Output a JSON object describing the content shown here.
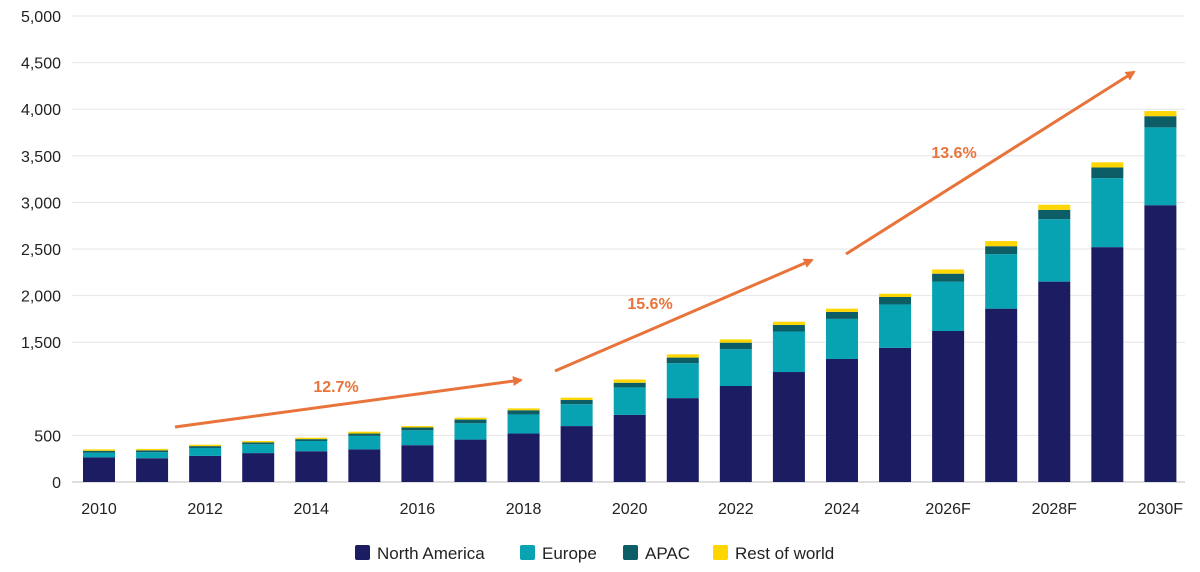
{
  "chart_data": {
    "type": "bar",
    "stacked": true,
    "title": "",
    "xlabel": "",
    "ylabel": "",
    "ylim": [
      0,
      5000
    ],
    "yticks": [
      0,
      500,
      1500,
      2000,
      2500,
      3000,
      3500,
      4000,
      4500,
      5000
    ],
    "ytick_labels": [
      "0",
      "500",
      "1,500",
      "2,000",
      "2,500",
      "3,000",
      "3,500",
      "4,000",
      "4,500",
      "5,000"
    ],
    "categories": [
      "2010",
      "2011",
      "2012",
      "2013",
      "2014",
      "2015",
      "2016",
      "2017",
      "2018",
      "2019",
      "2020",
      "2021",
      "2022",
      "2023",
      "2024",
      "2025",
      "2026F",
      "2027F",
      "2028F",
      "2029F",
      "2030F"
    ],
    "xtick_labels": [
      "2010",
      "",
      "2012",
      "",
      "2014",
      "",
      "2016",
      "",
      "2018",
      "",
      "2020",
      "",
      "2022",
      "",
      "2024",
      "",
      "2026F",
      "",
      "2028F",
      "",
      "2030F"
    ],
    "grid": "horizontal",
    "legend_position": "bottom-center",
    "series": [
      {
        "name": "North America",
        "color": "#1B1C62",
        "values": [
          265,
          255,
          280,
          310,
          330,
          350,
          395,
          455,
          520,
          600,
          720,
          900,
          1030,
          1180,
          1320,
          1440,
          1620,
          1860,
          2150,
          2520,
          2970
        ]
      },
      {
        "name": "Europe",
        "color": "#07A3B3",
        "values": [
          50,
          65,
          85,
          95,
          110,
          145,
          160,
          175,
          205,
          235,
          295,
          375,
          395,
          435,
          430,
          465,
          530,
          585,
          670,
          740,
          835
        ]
      },
      {
        "name": "APAC",
        "color": "#0C5D66",
        "values": [
          20,
          20,
          20,
          20,
          20,
          25,
          30,
          40,
          45,
          45,
          50,
          60,
          70,
          70,
          75,
          80,
          85,
          85,
          100,
          115,
          120
        ]
      },
      {
        "name": "Rest of world",
        "color": "#FFD600",
        "values": [
          15,
          15,
          15,
          15,
          15,
          20,
          15,
          20,
          20,
          25,
          35,
          35,
          35,
          35,
          35,
          35,
          45,
          55,
          55,
          55,
          55
        ]
      }
    ],
    "annotations": [
      {
        "text": "12.7%",
        "color": "#E8743B",
        "from": "2011",
        "to": "2018"
      },
      {
        "text": "15.6%",
        "color": "#E8743B",
        "from": "2019",
        "to": "2024"
      },
      {
        "text": "13.6%",
        "color": "#E8743B",
        "from": "2025",
        "to": "2030F"
      }
    ]
  }
}
